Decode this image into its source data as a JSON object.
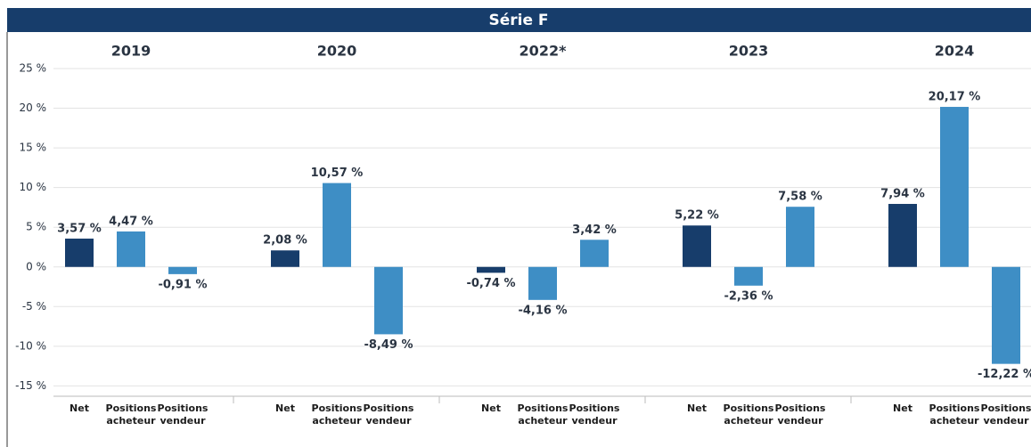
{
  "chart_data": {
    "type": "bar",
    "title": "Série F",
    "categories": [
      "2019",
      "2020",
      "2022*",
      "2023",
      "2024"
    ],
    "series": [
      {
        "name": "Net",
        "color": "#173d6b",
        "values": [
          3.57,
          2.08,
          -0.74,
          5.22,
          7.94
        ],
        "value_labels": [
          "3,57 %",
          "2,08 %",
          "-0,74 %",
          "5,22 %",
          "7,94 %"
        ]
      },
      {
        "name": "Positions acheteur",
        "color": "#3e8ec5",
        "values": [
          4.47,
          10.57,
          -4.16,
          -2.36,
          20.17
        ],
        "value_labels": [
          "4,47 %",
          "10,57 %",
          "-4,16 %",
          "-2,36 %",
          "20,17 %"
        ]
      },
      {
        "name": "Positions vendeur",
        "color": "#3e8ec5",
        "values": [
          -0.91,
          -8.49,
          3.42,
          7.58,
          -12.22
        ],
        "value_labels": [
          "-0,91 %",
          "-8,49 %",
          "3,42 %",
          "7,58 %",
          "-12,22 %"
        ]
      }
    ],
    "ylim": [
      -16.3,
      25
    ],
    "yticks": [
      {
        "value": -15,
        "label": "-15 %"
      },
      {
        "value": -10,
        "label": "-10 %"
      },
      {
        "value": -5,
        "label": "-5 %"
      },
      {
        "value": 0,
        "label": "0 %"
      },
      {
        "value": 5,
        "label": "5 %"
      },
      {
        "value": 10,
        "label": "10 %"
      },
      {
        "value": 15,
        "label": "15 %"
      },
      {
        "value": 20,
        "label": "20 %"
      },
      {
        "value": 25,
        "label": "25 %"
      }
    ],
    "grid": true
  }
}
